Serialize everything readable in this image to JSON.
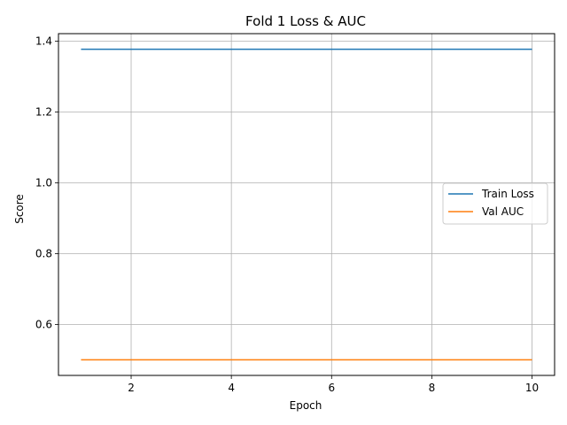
{
  "chart_data": {
    "type": "line",
    "title": "Fold 1 Loss & AUC",
    "xlabel": "Epoch",
    "ylabel": "Score",
    "x": [
      1,
      2,
      3,
      4,
      5,
      6,
      7,
      8,
      9,
      10
    ],
    "series": [
      {
        "name": "Train Loss",
        "color": "#1f77b4",
        "values": [
          1.377,
          1.377,
          1.377,
          1.377,
          1.377,
          1.377,
          1.377,
          1.377,
          1.377,
          1.377
        ]
      },
      {
        "name": "Val AUC",
        "color": "#ff7f0e",
        "values": [
          0.5,
          0.5,
          0.5,
          0.5,
          0.5,
          0.5,
          0.5,
          0.5,
          0.5,
          0.5
        ]
      }
    ],
    "xlim": [
      0.55,
      10.45
    ],
    "ylim": [
      0.456,
      1.421
    ],
    "xticks": [
      2,
      4,
      6,
      8,
      10
    ],
    "yticks": [
      0.6,
      0.8,
      1.0,
      1.2,
      1.4
    ],
    "xtick_labels": [
      "2",
      "4",
      "6",
      "8",
      "10"
    ],
    "ytick_labels": [
      "0.6",
      "0.8",
      "1.0",
      "1.2",
      "1.4"
    ],
    "grid": true,
    "legend_position": "center-right"
  }
}
